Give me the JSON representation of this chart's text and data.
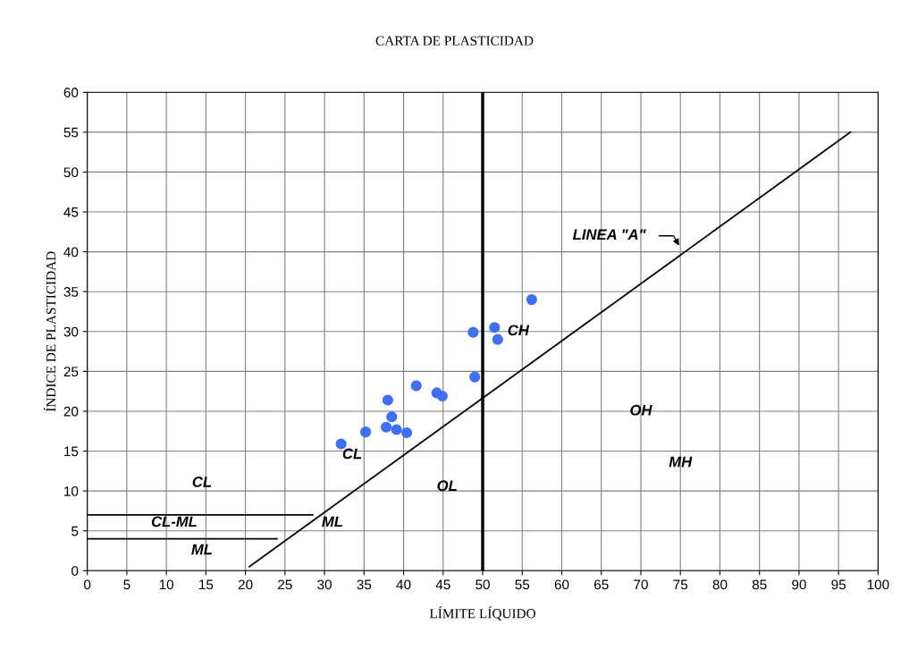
{
  "chart_data": {
    "type": "scatter",
    "title": "CARTA DE PLASTICIDAD",
    "xlabel": "LÍMITE LÍQUIDO",
    "ylabel": "ÍNDICE DE PLASTICIDAD",
    "xlim": [
      0,
      100
    ],
    "ylim": [
      0,
      60
    ],
    "xticks": [
      0,
      5,
      10,
      15,
      20,
      25,
      30,
      35,
      40,
      45,
      50,
      55,
      60,
      65,
      70,
      75,
      80,
      85,
      90,
      95,
      100
    ],
    "yticks": [
      0,
      5,
      10,
      15,
      20,
      25,
      30,
      35,
      40,
      45,
      50,
      55,
      60
    ],
    "grid": true,
    "legend": false,
    "series": [
      {
        "color": "#3f6ff5",
        "marker": "circle",
        "x": [
          32.1,
          35.2,
          37.8,
          38.0,
          38.5,
          39.1,
          40.4,
          41.6,
          44.2,
          44.9,
          48.8,
          49.0,
          51.5,
          51.9,
          56.2
        ],
        "values": [
          15.9,
          17.4,
          18.0,
          21.4,
          19.3,
          17.7,
          17.3,
          23.2,
          22.3,
          21.9,
          29.9,
          24.3,
          30.5,
          29.0,
          34.0
        ]
      },
      {
        "type": "line",
        "marker": "none",
        "color": "#000000",
        "x": [
          20.5,
          96.5
        ],
        "values": [
          0.5,
          55
        ]
      },
      {
        "type": "line",
        "marker": "none",
        "color": "#000000",
        "x": [
          0,
          28.5
        ],
        "values": [
          7,
          7
        ]
      },
      {
        "type": "line",
        "marker": "none",
        "color": "#000000",
        "x": [
          0,
          24
        ],
        "values": [
          4,
          4
        ]
      }
    ],
    "ref_lines": [
      {
        "axis": "x",
        "value": 50,
        "color": "#000000"
      }
    ],
    "annotations": [
      "CL",
      "CH",
      "LINEA \"A\"",
      "OH",
      "MH",
      "OL",
      "CL",
      "CL-ML",
      "ML",
      "ML"
    ]
  }
}
